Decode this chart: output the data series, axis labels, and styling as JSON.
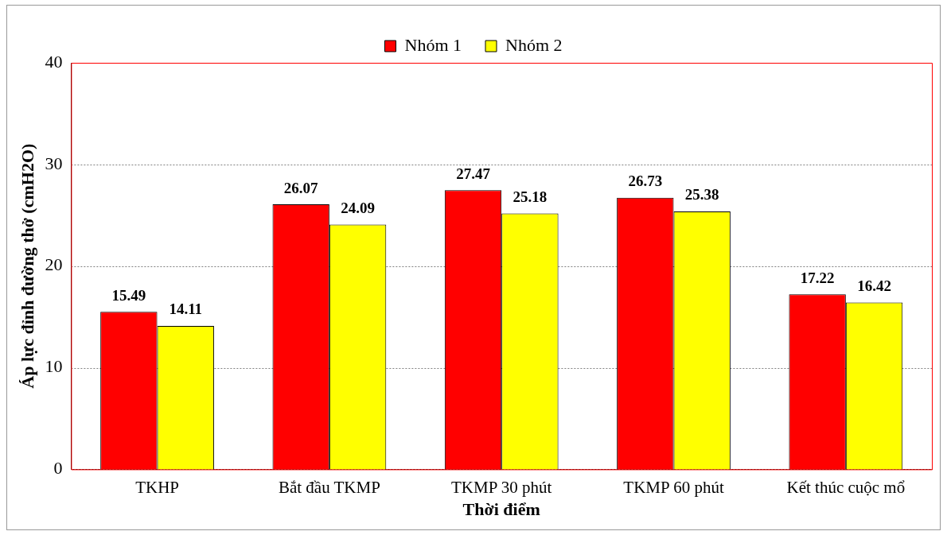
{
  "chart_data": {
    "type": "bar",
    "categories": [
      "TKHP",
      "Bắt đầu TKMP",
      "TKMP 30 phút",
      "TKMP 60 phút",
      "Kết thúc cuộc mổ"
    ],
    "series": [
      {
        "name": "Nhóm 1",
        "color": "#ff0000",
        "values": [
          15.49,
          26.07,
          27.47,
          26.73,
          17.22
        ]
      },
      {
        "name": "Nhóm 2",
        "color": "#ffff00",
        "values": [
          14.11,
          24.09,
          25.18,
          25.38,
          16.42
        ]
      }
    ],
    "xlabel": "Thời điểm",
    "ylabel": "Áp lực đỉnh đường thở (cmH2O)",
    "ylim": [
      0,
      40
    ],
    "yticks": [
      0,
      10,
      20,
      30,
      40
    ],
    "grid": "y",
    "legend": "top",
    "data_labels": true
  }
}
